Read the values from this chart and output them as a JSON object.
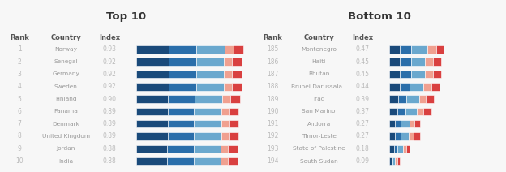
{
  "top10": {
    "ranks": [
      "1",
      "2",
      "3",
      "4",
      "5",
      "6",
      "7",
      "8",
      "9",
      "10"
    ],
    "countries": [
      "Norway",
      "Senegal",
      "Germany",
      "Sweden",
      "Finland",
      "Panama",
      "Denmark",
      "United Kingdom",
      "Jordan",
      "India"
    ],
    "indices": [
      "0.93",
      "0.92",
      "0.92",
      "0.92",
      "0.90",
      "0.89",
      "0.89",
      "0.89",
      "0.88",
      "0.88"
    ],
    "bar_values": [
      0.93,
      0.92,
      0.92,
      0.92,
      0.9,
      0.89,
      0.89,
      0.89,
      0.88,
      0.88
    ],
    "bar_segments": [
      [
        0.285,
        0.24,
        0.245,
        0.075,
        0.085
      ],
      [
        0.282,
        0.238,
        0.243,
        0.073,
        0.084
      ],
      [
        0.282,
        0.238,
        0.243,
        0.073,
        0.084
      ],
      [
        0.282,
        0.238,
        0.243,
        0.073,
        0.084
      ],
      [
        0.276,
        0.233,
        0.238,
        0.07,
        0.083
      ],
      [
        0.273,
        0.231,
        0.236,
        0.069,
        0.081
      ],
      [
        0.273,
        0.231,
        0.236,
        0.069,
        0.081
      ],
      [
        0.273,
        0.231,
        0.236,
        0.069,
        0.081
      ],
      [
        0.27,
        0.228,
        0.233,
        0.068,
        0.081
      ],
      [
        0.27,
        0.228,
        0.233,
        0.068,
        0.081
      ]
    ]
  },
  "bottom10": {
    "ranks": [
      "185",
      "186",
      "187",
      "188",
      "189",
      "190",
      "191",
      "192",
      "193",
      "194"
    ],
    "countries": [
      "Montenegro",
      "Haiti",
      "Bhutan",
      "Brunei Darussala..",
      "Iraq",
      "San Marino",
      "Andorra",
      "Timor-Leste",
      "State of Palestine",
      "South Sudan"
    ],
    "indices": [
      "0.47",
      "0.45",
      "0.45",
      "0.44",
      "0.39",
      "0.37",
      "0.27",
      "0.27",
      "0.18",
      "0.09"
    ],
    "bar_values": [
      0.47,
      0.45,
      0.45,
      0.44,
      0.39,
      0.37,
      0.27,
      0.27,
      0.18,
      0.09
    ],
    "bar_segments": [
      [
        0.09,
        0.1,
        0.14,
        0.08,
        0.06
      ],
      [
        0.09,
        0.1,
        0.12,
        0.07,
        0.07
      ],
      [
        0.09,
        0.1,
        0.12,
        0.07,
        0.07
      ],
      [
        0.09,
        0.09,
        0.12,
        0.07,
        0.07
      ],
      [
        0.08,
        0.07,
        0.11,
        0.06,
        0.07
      ],
      [
        0.07,
        0.07,
        0.1,
        0.06,
        0.07
      ],
      [
        0.05,
        0.05,
        0.08,
        0.04,
        0.05
      ],
      [
        0.05,
        0.05,
        0.07,
        0.04,
        0.06
      ],
      [
        0.04,
        0.03,
        0.05,
        0.03,
        0.03
      ],
      [
        0.02,
        0.01,
        0.02,
        0.02,
        0.02
      ]
    ]
  },
  "seg_colors": [
    "#1a4a7a",
    "#2a6eaa",
    "#6aa8ce",
    "#f0a090",
    "#d94040"
  ],
  "bg_color": "#f7f7f7",
  "panel_bg": "#ebebeb",
  "title_top": "Top 10",
  "title_bottom": "Bottom 10",
  "rank_color": "#bbbbbb",
  "country_color": "#999999",
  "index_color": "#bbbbbb",
  "header_color": "#555555",
  "title_color": "#333333",
  "white": "#ffffff"
}
